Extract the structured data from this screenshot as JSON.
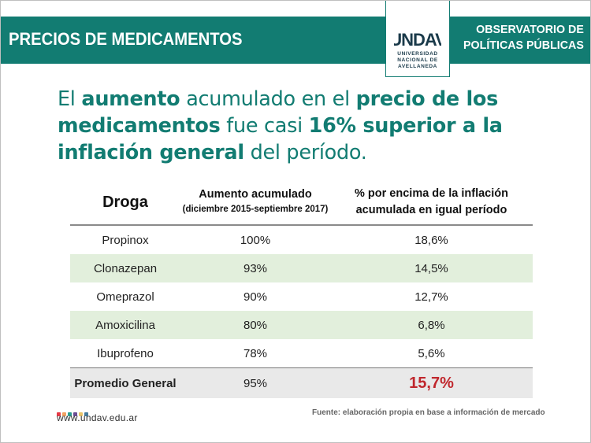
{
  "header": {
    "title": "PRECIOS DE MEDICAMENTOS",
    "org_line1": "OBSERVATORIO DE",
    "org_line2": "POLÍTICAS PÚBLICAS",
    "color": "#127c72"
  },
  "logo": {
    "mark": "UNDAV",
    "line1": "UNIVERSIDAD",
    "line2": "NACIONAL DE",
    "line3": "AVELLANEDA"
  },
  "headline": {
    "p1": "El ",
    "b1": "aumento",
    "p2": " acumulado en el ",
    "b2": "precio de los medicamentos",
    "p3": " fue casi ",
    "b3": "16% superior a la inflación general",
    "p4": " del período."
  },
  "table": {
    "columns": {
      "droga": "Droga",
      "aumento": "Aumento acumulado",
      "aumento_sub": "(diciembre 2015-septiembre 2017)",
      "pct_line1": "%  por encima de la inflación",
      "pct_line2": "acumulada en igual período"
    },
    "rows": [
      {
        "droga": "Propinox",
        "aumento": "100%",
        "pct": "18,6%"
      },
      {
        "droga": "Clonazepan",
        "aumento": "93%",
        "pct": "14,5%"
      },
      {
        "droga": "Omeprazol",
        "aumento": "90%",
        "pct": "12,7%"
      },
      {
        "droga": "Amoxicilina",
        "aumento": "80%",
        "pct": "6,8%"
      },
      {
        "droga": "Ibuprofeno",
        "aumento": "78%",
        "pct": "5,6%"
      }
    ],
    "total": {
      "droga": "Promedio General",
      "aumento": "95%",
      "pct": "15,7%"
    }
  },
  "footer": {
    "url": "www.undav.edu.ar",
    "source": "Fuente: elaboración propia en base a información de mercado",
    "dot_colors": [
      "#e63946",
      "#f4a261",
      "#2a9d8f",
      "#6a4c93",
      "#e9c46a",
      "#457b9d"
    ]
  }
}
